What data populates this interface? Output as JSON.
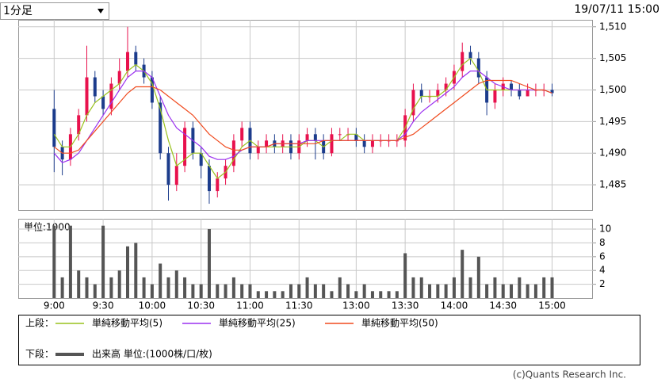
{
  "period": "1分足",
  "timestamp": "19/07/11 15:00",
  "chart_data": [
    {
      "type": "candlestick",
      "x": [
        0,
        5,
        10,
        15,
        20,
        25,
        30,
        35,
        40,
        45,
        50,
        55,
        60,
        65,
        70,
        75,
        80,
        85,
        90,
        95,
        100,
        105,
        110,
        115,
        120,
        125,
        130,
        135,
        140,
        145,
        150,
        155,
        160,
        165,
        170,
        175,
        180,
        185,
        190,
        195,
        200,
        205,
        210,
        215,
        220,
        225,
        230,
        235,
        240,
        245,
        250,
        255,
        260,
        265,
        270,
        275,
        280,
        285,
        290,
        295,
        300,
        305
      ],
      "open": [
        1497,
        1491,
        1489,
        1493,
        1496,
        1502,
        1499,
        1497,
        1501,
        1503,
        1506,
        1504,
        1502,
        1498,
        1490,
        1485,
        1488,
        1494,
        1490,
        1488,
        1484,
        1486,
        1488,
        1492,
        1494,
        1490,
        1491,
        1492,
        1491,
        1492,
        1490,
        1492,
        1493,
        1492,
        1490,
        1493,
        1493,
        1493,
        1492,
        1491,
        1492,
        1492,
        1492,
        1492,
        1496,
        1500,
        1499,
        1499,
        1500,
        1501,
        1503,
        1506,
        1505,
        1502,
        1498,
        1500,
        1501,
        1500,
        1499,
        1500,
        1500,
        1500
      ],
      "high": [
        1500,
        1492,
        1494,
        1497,
        1507,
        1503,
        1500,
        1502,
        1505,
        1510,
        1507,
        1505,
        1503,
        1499,
        1491,
        1490,
        1495,
        1495,
        1491,
        1489,
        1487,
        1489,
        1493,
        1495,
        1495,
        1492,
        1493,
        1493,
        1493,
        1493,
        1493,
        1494,
        1494,
        1493,
        1494,
        1494,
        1494,
        1494,
        1493,
        1493,
        1493,
        1493,
        1493,
        1497,
        1501,
        1501,
        1500,
        1501,
        1502,
        1504,
        1507.5,
        1507,
        1506,
        1503,
        1501,
        1502,
        1501.5,
        1501,
        1501,
        1501,
        1501,
        1501
      ],
      "low": [
        1487,
        1486.5,
        1488,
        1492,
        1495,
        1498,
        1496,
        1496,
        1500,
        1502,
        1503,
        1501,
        1497,
        1489,
        1482.5,
        1484,
        1487,
        1489,
        1486,
        1482,
        1483,
        1485,
        1487,
        1491,
        1489,
        1489,
        1490,
        1490,
        1490,
        1489,
        1489,
        1491,
        1489,
        1489,
        1489.5,
        1492,
        1492,
        1491,
        1490,
        1490,
        1491,
        1491,
        1491,
        1491,
        1495,
        1498,
        1498,
        1498,
        1499,
        1500,
        1502,
        1504,
        1501,
        1496,
        1497,
        1499,
        1499,
        1498.5,
        1499,
        1499,
        1499,
        1499
      ],
      "close": [
        1491,
        1489,
        1493,
        1496,
        1502,
        1499,
        1497,
        1501,
        1503,
        1506,
        1504,
        1502,
        1498,
        1490,
        1485,
        1488,
        1494,
        1490,
        1488,
        1484,
        1486,
        1488,
        1492,
        1494,
        1490,
        1491,
        1492,
        1491,
        1492,
        1490,
        1492,
        1493,
        1492,
        1490,
        1493,
        1493,
        1493,
        1492,
        1491,
        1492,
        1492,
        1492,
        1492,
        1496,
        1500,
        1499,
        1499,
        1500,
        1501,
        1503,
        1506,
        1505,
        1502,
        1498,
        1500,
        1501,
        1500,
        1499,
        1500,
        1500,
        1500,
        1499.5
      ],
      "up_color": "#e8114d",
      "down_color": "#1c3c8c",
      "series": [
        {
          "name": "単純移動平均(5)",
          "color": "#99c21d",
          "values": [
            1493,
            1491,
            1491,
            1493,
            1496,
            1498,
            1499,
            1500,
            1501,
            1503,
            1504,
            1503,
            1501,
            1497,
            1492,
            1488,
            1489,
            1490,
            1490,
            1488,
            1486,
            1487,
            1489,
            1491,
            1492,
            1491,
            1491,
            1491,
            1491,
            1491,
            1491,
            1492,
            1492,
            1491,
            1492,
            1492,
            1493,
            1493,
            1492,
            1492,
            1492,
            1492,
            1492,
            1494,
            1497,
            1499,
            1499,
            1499,
            1500,
            1502,
            1504,
            1505,
            1503,
            1500,
            1500,
            1500,
            1500,
            1500,
            1500,
            1500,
            1500,
            1499.5
          ]
        },
        {
          "name": "単純移動平均(25)",
          "color": "#9b30f0",
          "values": [
            1490,
            1488.5,
            1489,
            1490,
            1492,
            1494,
            1496,
            1498,
            1500,
            1502,
            1503,
            1503,
            1502,
            1499,
            1496,
            1494,
            1493,
            1492,
            1491,
            1489.5,
            1489,
            1489,
            1489.5,
            1490.5,
            1491,
            1491,
            1491,
            1491.5,
            1491.5,
            1491.5,
            1491.5,
            1492,
            1492,
            1492,
            1492,
            1492,
            1492,
            1492,
            1492,
            1492,
            1492,
            1492,
            1492,
            1493,
            1495,
            1496.5,
            1497.5,
            1498.5,
            1499.5,
            1500.5,
            1502,
            1503,
            1503,
            1502,
            1501,
            1500.5,
            1500,
            1500,
            1500,
            1500,
            1500,
            1499.5
          ]
        },
        {
          "name": "単純移動平均(50)",
          "color": "#f04a1e",
          "values": [
            1491,
            1490,
            1490,
            1490.5,
            1492,
            1493.5,
            1495,
            1496.5,
            1498,
            1499.5,
            1500.5,
            1500.5,
            1500.5,
            1500,
            1499,
            1498,
            1497,
            1496,
            1494.5,
            1493,
            1492,
            1491,
            1490.5,
            1490.5,
            1491,
            1491,
            1491,
            1491.5,
            1491.5,
            1491.5,
            1491.5,
            1491.5,
            1491.5,
            1492,
            1492,
            1492,
            1492,
            1492,
            1492,
            1492,
            1492,
            1492,
            1492,
            1492.5,
            1493,
            1494,
            1495,
            1496,
            1497,
            1498,
            1499,
            1500,
            1501,
            1501.5,
            1501.5,
            1501.5,
            1501.5,
            1501,
            1500.5,
            1500,
            1500,
            1499.5
          ]
        }
      ],
      "xlim": [
        -22,
        330
      ],
      "xticks": [
        0,
        30,
        60,
        90,
        120,
        150,
        185,
        215,
        245,
        275,
        305
      ],
      "ylim": [
        1481,
        1511.1
      ],
      "yticks": [
        {
          "value": 1485,
          "label": "1,485"
        },
        {
          "value": 1490,
          "label": "1,490"
        },
        {
          "value": 1495,
          "label": "1,495"
        },
        {
          "value": 1500,
          "label": "1,500"
        },
        {
          "value": 1505,
          "label": "1,505"
        },
        {
          "value": 1510,
          "label": "1,510"
        }
      ],
      "grid": true,
      "upper_label": "上段："
    },
    {
      "type": "bar",
      "unit_label": "単位:1000",
      "x": [
        0,
        5,
        10,
        15,
        20,
        25,
        30,
        35,
        40,
        45,
        50,
        55,
        60,
        65,
        70,
        75,
        80,
        85,
        90,
        95,
        100,
        105,
        110,
        115,
        120,
        125,
        130,
        135,
        140,
        145,
        150,
        155,
        160,
        165,
        170,
        175,
        180,
        185,
        190,
        195,
        200,
        205,
        210,
        215,
        220,
        225,
        230,
        235,
        240,
        245,
        250,
        255,
        260,
        265,
        270,
        275,
        280,
        285,
        290,
        295,
        300,
        305
      ],
      "series": [
        {
          "name": "出来高 単位:(1000株/口/枚)",
          "color": "#555555",
          "values": [
            10.5,
            3,
            10.5,
            4,
            3,
            2,
            10.5,
            3,
            4,
            7.5,
            8,
            3,
            2,
            5,
            3,
            4,
            3,
            2,
            2,
            10,
            2,
            2,
            3,
            2,
            2,
            1,
            1,
            1,
            1,
            2,
            2,
            3,
            2,
            2,
            1,
            3,
            2,
            1,
            2,
            1,
            1,
            1,
            1,
            6.5,
            3,
            3,
            2,
            2,
            2,
            3,
            7,
            3,
            6,
            2,
            3,
            2,
            2,
            3,
            2,
            2,
            3,
            3
          ]
        }
      ],
      "xlim": [
        -22,
        330
      ],
      "xticks": [
        {
          "value": 0,
          "label": "9:00"
        },
        {
          "value": 30,
          "label": "9:30"
        },
        {
          "value": 60,
          "label": "10:00"
        },
        {
          "value": 90,
          "label": "10:30"
        },
        {
          "value": 120,
          "label": "11:00"
        },
        {
          "value": 150,
          "label": "11:30"
        },
        {
          "value": 185,
          "label": "13:00"
        },
        {
          "value": 215,
          "label": "13:30"
        },
        {
          "value": 245,
          "label": "14:00"
        },
        {
          "value": 275,
          "label": "14:30"
        },
        {
          "value": 305,
          "label": "15:00"
        }
      ],
      "ylim": [
        0,
        11.5
      ],
      "yticks": [
        2,
        4,
        6,
        8,
        10
      ],
      "grid": true,
      "lower_label": "下段："
    }
  ],
  "footer": "(c)Quants Research Inc."
}
